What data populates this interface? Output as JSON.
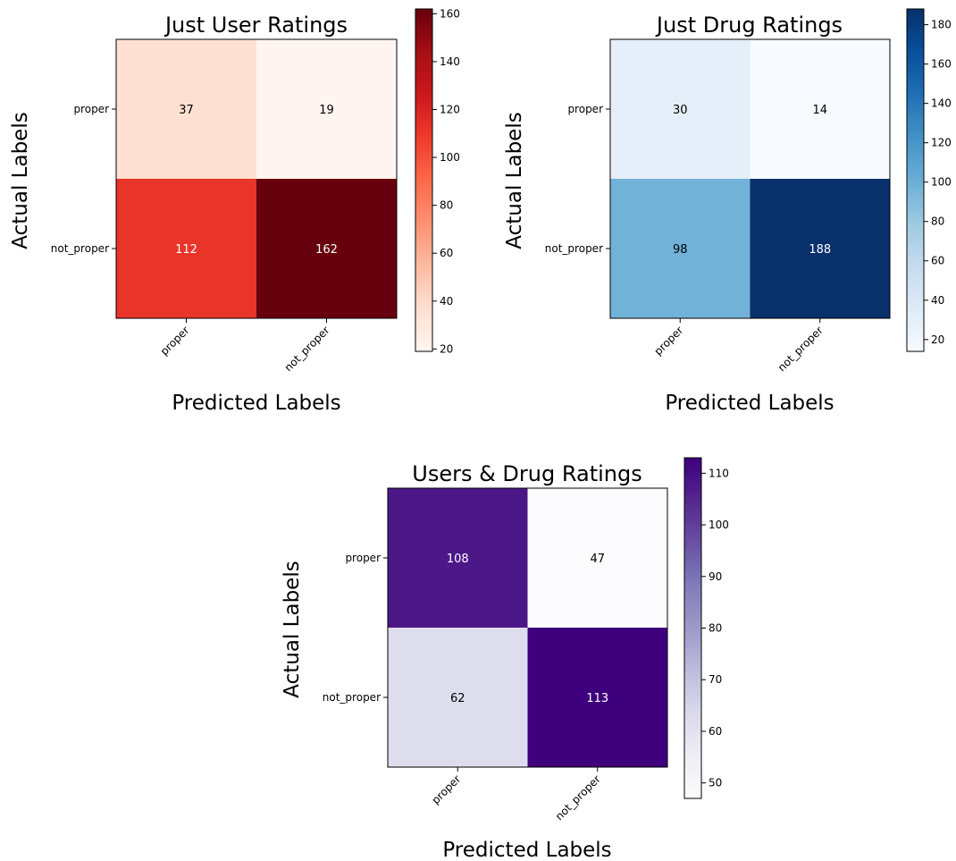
{
  "chart_data": [
    {
      "type": "heatmap",
      "title": "Just User Ratings",
      "xlabel": "Predicted Labels",
      "ylabel": "Actual Labels",
      "x_categories": [
        "proper",
        "not_proper"
      ],
      "y_categories": [
        "proper",
        "not_proper"
      ],
      "values": [
        [
          37,
          19
        ],
        [
          112,
          162
        ]
      ],
      "colormap": "Reds",
      "colorbar": {
        "range": [
          19,
          162
        ],
        "ticks": [
          20,
          40,
          60,
          80,
          100,
          120,
          140,
          160
        ]
      }
    },
    {
      "type": "heatmap",
      "title": "Just Drug Ratings",
      "xlabel": "Predicted Labels",
      "ylabel": "Actual Labels",
      "x_categories": [
        "proper",
        "not_proper"
      ],
      "y_categories": [
        "proper",
        "not_proper"
      ],
      "values": [
        [
          30,
          14
        ],
        [
          98,
          188
        ]
      ],
      "colormap": "Blues",
      "colorbar": {
        "range": [
          14,
          188
        ],
        "ticks": [
          20,
          40,
          60,
          80,
          100,
          120,
          140,
          160,
          180
        ]
      }
    },
    {
      "type": "heatmap",
      "title": "Users & Drug Ratings",
      "xlabel": "Predicted Labels",
      "ylabel": "Actual Labels",
      "x_categories": [
        "proper",
        "not_proper"
      ],
      "y_categories": [
        "proper",
        "not_proper"
      ],
      "values": [
        [
          108,
          47
        ],
        [
          62,
          113
        ]
      ],
      "colormap": "Purples",
      "colorbar": {
        "range": [
          47,
          113
        ],
        "ticks": [
          50,
          60,
          70,
          80,
          90,
          100,
          110
        ]
      }
    }
  ]
}
